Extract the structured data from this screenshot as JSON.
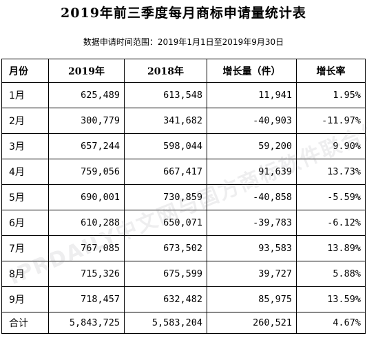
{
  "title": "2019年前三季度每月商标申请量统计表",
  "subtitle": "数据申请时间范围：2019年1月1日至2019年9月30日",
  "watermark": "IPRDAILY中文网与国方商标软件联合发布",
  "table": {
    "headers": [
      "月份",
      "2019年",
      "2018年",
      "增长量（件）",
      "增长率"
    ],
    "rows": [
      [
        "1月",
        "625,489",
        "613,548",
        "11,941",
        "1.95%"
      ],
      [
        "2月",
        "300,779",
        "341,682",
        "-40,903",
        "-11.97%"
      ],
      [
        "3月",
        "657,244",
        "598,044",
        "59,200",
        "9.90%"
      ],
      [
        "4月",
        "759,056",
        "667,417",
        "91,639",
        "13.73%"
      ],
      [
        "5月",
        "690,001",
        "730,859",
        "-40,858",
        "-5.59%"
      ],
      [
        "6月",
        "610,288",
        "650,071",
        "-39,783",
        "-6.12%"
      ],
      [
        "7月",
        "767,085",
        "673,502",
        "93,583",
        "13.89%"
      ],
      [
        "8月",
        "715,326",
        "675,599",
        "39,727",
        "5.88%"
      ],
      [
        "9月",
        "718,457",
        "632,482",
        "85,975",
        "13.59%"
      ],
      [
        "合计",
        "5,843,725",
        "5,583,204",
        "260,521",
        "4.67%"
      ]
    ]
  }
}
